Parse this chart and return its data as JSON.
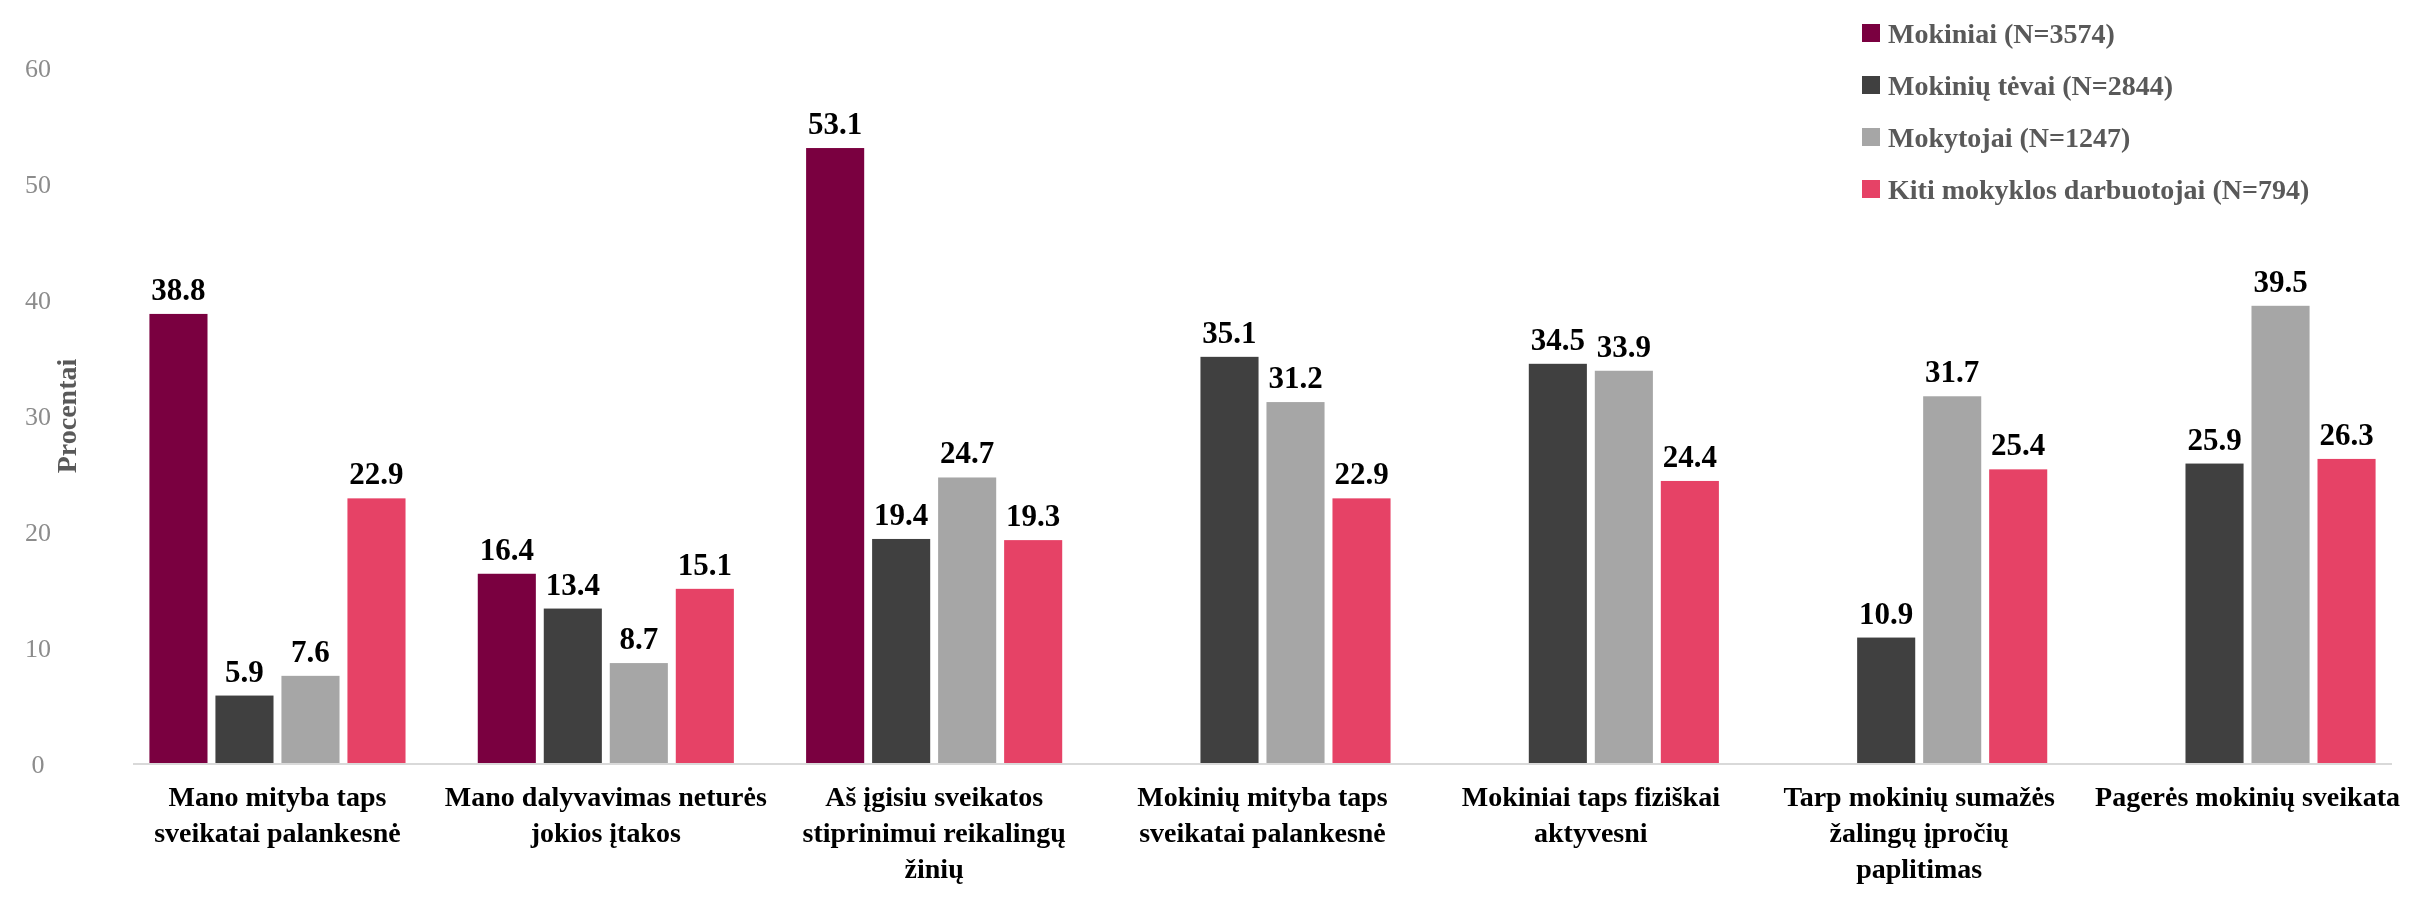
{
  "chart_data": {
    "type": "bar",
    "ylabel": "Procentai",
    "categories": [
      "Mano mityba taps sveikatai palankesnė",
      "Mano dalyvavimas neturės jokios įtakos",
      "Aš įgisiu sveikatos stiprinimui reikalingų žinių",
      "Mokinių mityba taps sveikatai palankesnė",
      "Mokiniai taps fiziškai aktyvesni",
      "Tarp mokinių sumažės žalingų įpročių paplitimas",
      "Pagerės mokinių sveikata"
    ],
    "series": [
      {
        "name": "Mokiniai (N=3574)",
        "color": "#7a0040",
        "values": [
          38.8,
          16.4,
          53.1,
          null,
          null,
          null,
          null
        ]
      },
      {
        "name": "Mokinių tėvai (N=2844)",
        "color": "#404040",
        "values": [
          5.9,
          13.4,
          19.4,
          35.1,
          34.5,
          10.9,
          25.9
        ]
      },
      {
        "name": "Mokytojai (N=1247)",
        "color": "#a6a6a6",
        "values": [
          7.6,
          8.7,
          24.7,
          31.2,
          33.9,
          31.7,
          39.5
        ]
      },
      {
        "name": "Kiti mokyklos darbuotojai (N=794)",
        "color": "#e64266",
        "values": [
          22.9,
          15.1,
          19.3,
          22.9,
          24.4,
          25.4,
          26.3
        ]
      }
    ],
    "ylim": [
      0,
      60
    ],
    "yticks": [
      0,
      10,
      20,
      30,
      40,
      50,
      60
    ],
    "grid": false,
    "legend": "top right",
    "data_labels": true
  }
}
